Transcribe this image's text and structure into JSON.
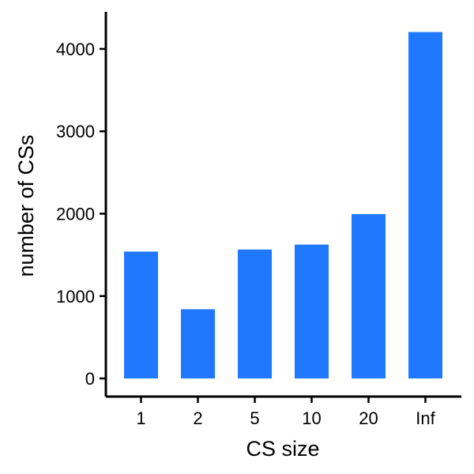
{
  "chart_data": {
    "type": "bar",
    "title": "",
    "xlabel": "CS size",
    "ylabel": "number of CSs",
    "categories": [
      "1",
      "2",
      "5",
      "10",
      "20",
      "Inf"
    ],
    "values": [
      1540,
      840,
      1565,
      1625,
      1995,
      4205
    ],
    "ylim": [
      -220,
      4450
    ],
    "yticks": [
      0,
      1000,
      2000,
      3000,
      4000
    ],
    "grid": false,
    "legend": "none",
    "bar_color": "#1F78FF",
    "axis_color": "#000000"
  }
}
